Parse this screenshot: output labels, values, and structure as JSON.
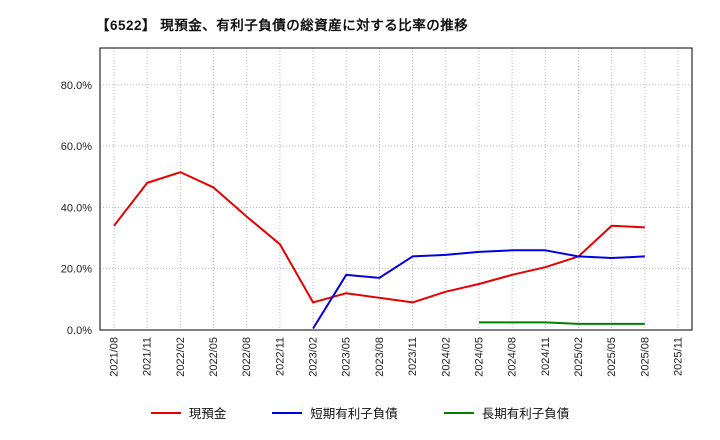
{
  "title": "【6522】 現預金、有利子負債の総資産に対する比率の推移",
  "chart_data": {
    "type": "line",
    "x": [
      "2021/08",
      "2021/11",
      "2022/02",
      "2022/05",
      "2022/08",
      "2022/11",
      "2023/02",
      "2023/05",
      "2023/08",
      "2023/11",
      "2024/02",
      "2024/05",
      "2024/08",
      "2024/11",
      "2025/02",
      "2025/05",
      "2025/08",
      "2025/11"
    ],
    "yticks": [
      "0.0%",
      "20.0%",
      "40.0%",
      "60.0%",
      "80.0%"
    ],
    "ytick_values": [
      0,
      20,
      40,
      60,
      80
    ],
    "ylim": [
      0,
      92
    ],
    "grid": true,
    "legend_position": "bottom",
    "series": [
      {
        "name": "現預金",
        "color": "#e60000",
        "values": [
          34,
          48,
          51.5,
          46.5,
          37,
          28,
          9,
          12,
          10.5,
          9,
          12.5,
          15,
          18,
          20.5,
          24,
          34,
          33.5,
          null
        ]
      },
      {
        "name": "短期有利子負債",
        "color": "#0000e6",
        "values": [
          null,
          null,
          null,
          null,
          null,
          null,
          0.5,
          18,
          17,
          24,
          24.5,
          25.5,
          26,
          26,
          24,
          23.5,
          24,
          null
        ]
      },
      {
        "name": "長期有利子負債",
        "color": "#008000",
        "values": [
          null,
          null,
          null,
          null,
          null,
          null,
          null,
          null,
          null,
          null,
          null,
          2.5,
          2.5,
          2.5,
          2,
          2,
          2,
          null
        ]
      }
    ]
  }
}
